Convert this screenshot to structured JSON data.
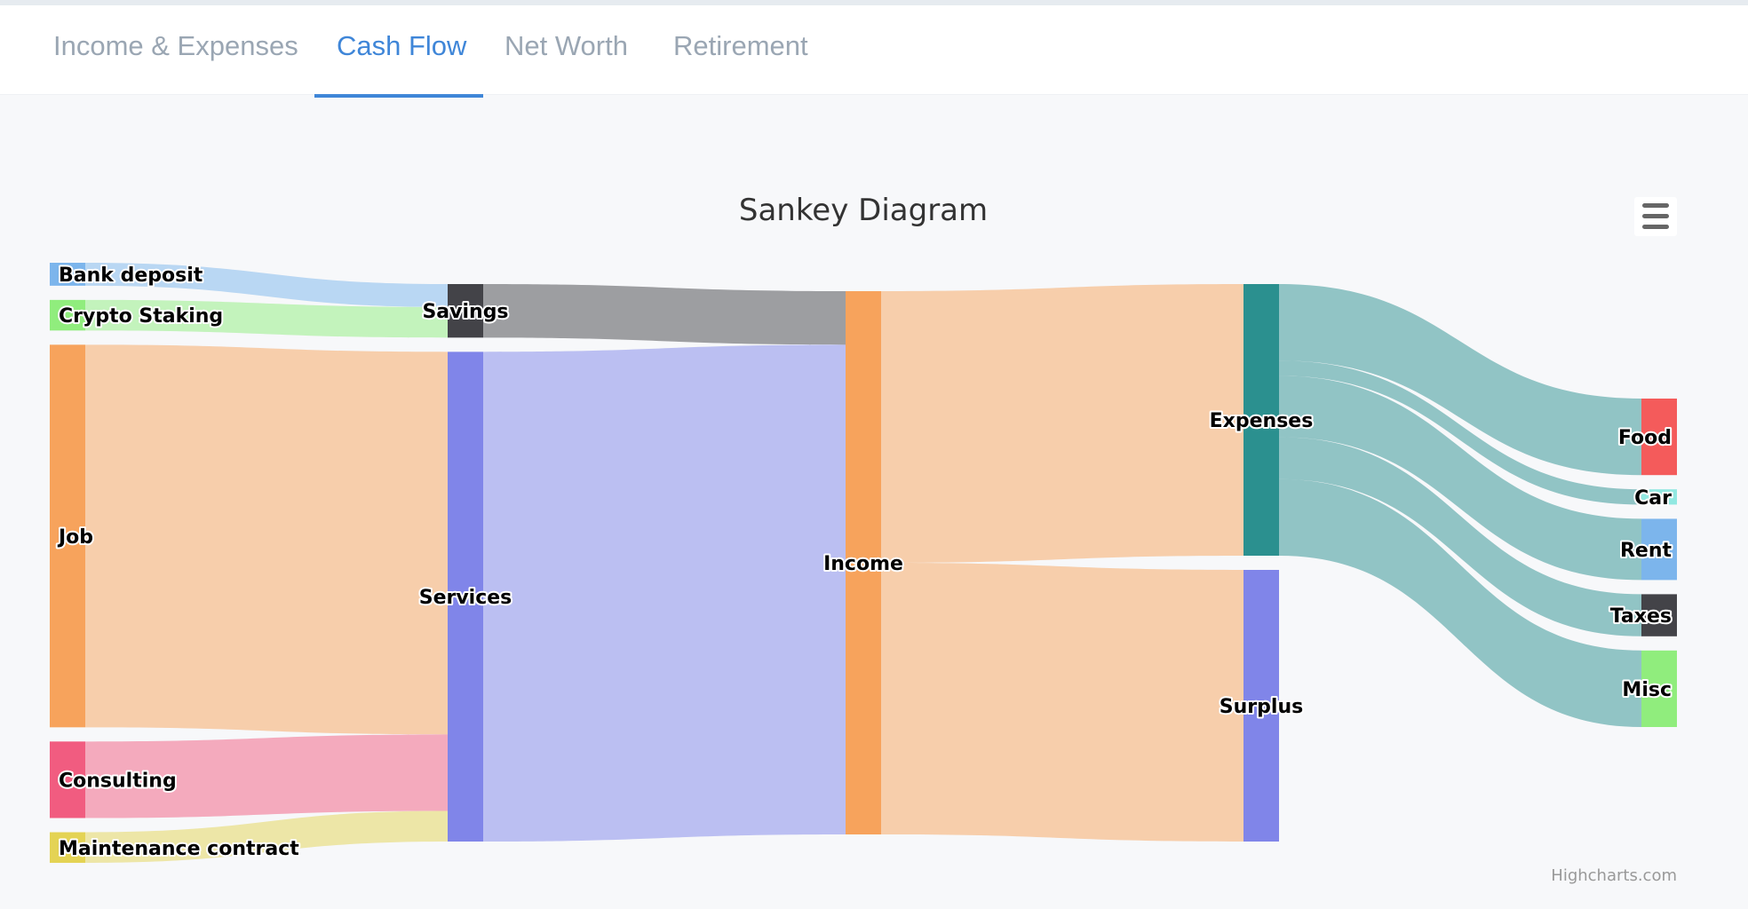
{
  "tabs": [
    {
      "label": "Income & Expenses",
      "active": false
    },
    {
      "label": "Cash Flow",
      "active": true
    },
    {
      "label": "Net Worth",
      "active": false
    },
    {
      "label": "Retirement",
      "active": false
    }
  ],
  "colors": {
    "bank_deposit": "#7cb5ec",
    "crypto_staking": "#90ed7d",
    "job": "#f7a35c",
    "consulting": "#f15c80",
    "maintenance_contract": "#e4d354",
    "savings": "#434348",
    "services": "#8085e9",
    "income": "#f7a35c",
    "expenses": "#2b908f",
    "surplus": "#8085e9",
    "food": "#f45b5b",
    "car": "#91e8e1",
    "rent": "#7cb5ec",
    "taxes": "#434348",
    "misc": "#90ed7d"
  },
  "credits": "Highcharts.com",
  "menu_icon": "hamburger-menu-icon",
  "chart_data": {
    "type": "sankey",
    "title": "Sankey Diagram",
    "nodes": [
      {
        "id": "Bank deposit",
        "column": 0
      },
      {
        "id": "Crypto Staking",
        "column": 0
      },
      {
        "id": "Job",
        "column": 0
      },
      {
        "id": "Consulting",
        "column": 0
      },
      {
        "id": "Maintenance contract",
        "column": 0
      },
      {
        "id": "Savings",
        "column": 1
      },
      {
        "id": "Services",
        "column": 1
      },
      {
        "id": "Income",
        "column": 2
      },
      {
        "id": "Expenses",
        "column": 3
      },
      {
        "id": "Surplus",
        "column": 3
      },
      {
        "id": "Food",
        "column": 4
      },
      {
        "id": "Car",
        "column": 4
      },
      {
        "id": "Rent",
        "column": 4
      },
      {
        "id": "Taxes",
        "column": 4
      },
      {
        "id": "Misc",
        "column": 4
      }
    ],
    "links": [
      {
        "from": "Bank deposit",
        "to": "Savings",
        "value": 30
      },
      {
        "from": "Crypto Staking",
        "to": "Savings",
        "value": 40
      },
      {
        "from": "Job",
        "to": "Services",
        "value": 500
      },
      {
        "from": "Consulting",
        "to": "Services",
        "value": 100
      },
      {
        "from": "Maintenance contract",
        "to": "Services",
        "value": 40
      },
      {
        "from": "Savings",
        "to": "Income",
        "value": 70
      },
      {
        "from": "Services",
        "to": "Income",
        "value": 640
      },
      {
        "from": "Income",
        "to": "Expenses",
        "value": 355
      },
      {
        "from": "Income",
        "to": "Surplus",
        "value": 355
      },
      {
        "from": "Expenses",
        "to": "Food",
        "value": 100
      },
      {
        "from": "Expenses",
        "to": "Car",
        "value": 20
      },
      {
        "from": "Expenses",
        "to": "Rent",
        "value": 80
      },
      {
        "from": "Expenses",
        "to": "Taxes",
        "value": 55
      },
      {
        "from": "Expenses",
        "to": "Misc",
        "value": 100
      }
    ]
  }
}
